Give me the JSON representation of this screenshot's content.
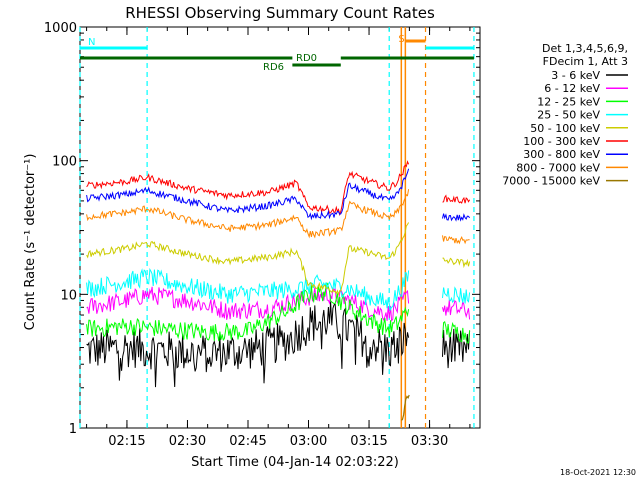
{
  "chart_data": {
    "type": "line",
    "title": "RHESSI Observing Summary Count Rates",
    "xlabel": "Start Time (04-Jan-14 02:03:22)",
    "ylabel": "Count Rate (s⁻¹ detector⁻¹)",
    "y_scale": "log",
    "ylim": [
      1,
      1000
    ],
    "xlim": [
      "02:03:22",
      "03:42:30"
    ],
    "x_ticks": [
      "02:15",
      "02:30",
      "02:45",
      "03:00",
      "03:15",
      "03:30"
    ],
    "y_ticks": [
      "1",
      "10",
      "100",
      "1000"
    ],
    "legend_position": "right",
    "legend_header": [
      "Det 1,3,4,5,6,9,",
      "FDecim 1, Att 3"
    ],
    "series": [
      {
        "name": "3 - 6 keV",
        "color": "#000000",
        "x": [
          "02:05",
          "02:15",
          "02:25",
          "02:35",
          "02:45",
          "02:55",
          "03:00",
          "03:05",
          "03:10",
          "03:15",
          "03:20",
          "03:22",
          "03:25",
          "03:33",
          "03:40"
        ],
        "values": [
          3.8,
          4.0,
          3.8,
          3.6,
          3.8,
          4.5,
          6.0,
          6.5,
          5.5,
          4.5,
          3.8,
          4.2,
          5.0,
          4.0,
          3.8
        ]
      },
      {
        "name": "6 - 12 keV",
        "color": "#ff00ff",
        "x": [
          "02:05",
          "02:15",
          "02:20",
          "02:30",
          "02:40",
          "02:50",
          "03:00",
          "03:05",
          "03:10",
          "03:15",
          "03:20",
          "03:22",
          "03:25",
          "03:33",
          "03:40"
        ],
        "values": [
          8.0,
          9.0,
          10.0,
          9.0,
          7.5,
          7.8,
          9.5,
          10.0,
          9.0,
          7.8,
          7.2,
          8.0,
          10.0,
          8.0,
          7.5
        ]
      },
      {
        "name": "12 - 25 keV",
        "color": "#00ff00",
        "x": [
          "02:05",
          "02:15",
          "02:25",
          "02:35",
          "02:45",
          "02:55",
          "03:00",
          "03:05",
          "03:10",
          "03:15",
          "03:20",
          "03:22",
          "03:25",
          "03:33",
          "03:40"
        ],
        "values": [
          5.5,
          5.8,
          5.5,
          5.2,
          5.3,
          7.5,
          10.0,
          10.5,
          8.0,
          6.5,
          5.5,
          6.0,
          8.0,
          5.5,
          5.0
        ]
      },
      {
        "name": "25 - 50 keV",
        "color": "#00ffff",
        "x": [
          "02:05",
          "02:15",
          "02:20",
          "02:30",
          "02:40",
          "02:50",
          "02:57",
          "03:03",
          "03:10",
          "03:15",
          "03:20",
          "03:22",
          "03:25",
          "03:33",
          "03:40"
        ],
        "values": [
          11.0,
          12.5,
          13.5,
          11.5,
          10.0,
          10.5,
          11.0,
          12.0,
          11.0,
          9.5,
          8.5,
          10.0,
          14.0,
          10.5,
          9.5
        ]
      },
      {
        "name": "50 - 100 keV",
        "color": "#cccc00",
        "x": [
          "02:05",
          "02:15",
          "02:20",
          "02:30",
          "02:40",
          "02:50",
          "02:57",
          "03:00",
          "03:08",
          "03:10",
          "03:15",
          "03:20",
          "03:22",
          "03:25",
          "03:33",
          "03:40"
        ],
        "values": [
          20.0,
          22.0,
          24.0,
          20.0,
          17.5,
          19.0,
          21.0,
          12.0,
          10.5,
          22.0,
          20.5,
          18.5,
          22.0,
          35.0,
          18.0,
          17.0
        ]
      },
      {
        "name": "100 - 300 keV",
        "color": "#ff0000",
        "x": [
          "02:05",
          "02:15",
          "02:20",
          "02:30",
          "02:40",
          "02:50",
          "02:57",
          "03:00",
          "03:08",
          "03:10",
          "03:15",
          "03:20",
          "03:22",
          "03:25",
          "03:33",
          "03:40"
        ],
        "values": [
          65.0,
          70.0,
          75.0,
          62.0,
          55.0,
          58.0,
          68.0,
          45.0,
          42.0,
          80.0,
          70.0,
          62.0,
          70.0,
          100.0,
          52.0,
          50.0
        ]
      },
      {
        "name": "300 - 800 keV",
        "color": "#0000ff",
        "x": [
          "02:05",
          "02:15",
          "02:20",
          "02:30",
          "02:40",
          "02:50",
          "02:57",
          "03:00",
          "03:08",
          "03:10",
          "03:15",
          "03:20",
          "03:22",
          "03:25",
          "03:33",
          "03:40"
        ],
        "values": [
          52.0,
          56.0,
          60.0,
          50.0,
          42.0,
          46.0,
          52.0,
          38.0,
          40.0,
          65.0,
          57.0,
          50.0,
          56.0,
          85.0,
          38.0,
          37.0
        ]
      },
      {
        "name": "800 - 7000 keV",
        "color": "#ff8800",
        "x": [
          "02:05",
          "02:15",
          "02:20",
          "02:30",
          "02:40",
          "02:50",
          "02:57",
          "03:00",
          "03:08",
          "03:10",
          "03:15",
          "03:20",
          "03:22",
          "03:25",
          "03:33",
          "03:40"
        ],
        "values": [
          38.0,
          41.0,
          44.0,
          36.0,
          31.0,
          33.0,
          38.0,
          28.0,
          30.0,
          47.0,
          42.0,
          37.0,
          41.0,
          60.0,
          26.0,
          25.0
        ]
      },
      {
        "name": "7000 - 15000 keV",
        "color": "#997700",
        "x": [
          "03:23",
          "03:24",
          "03:25"
        ],
        "values": [
          1.0,
          1.5,
          2.0
        ]
      }
    ],
    "markers": {
      "dashed_lines": [
        {
          "time": "02:03:22",
          "color": "#00ffff"
        },
        {
          "time": "02:20",
          "color": "#00ffff"
        },
        {
          "time": "03:20",
          "color": "#00ffff"
        },
        {
          "time": "03:29",
          "color": "#ff8800"
        },
        {
          "time": "03:41",
          "color": "#00ffff"
        }
      ],
      "solid_lines": [
        {
          "time": "03:23",
          "color": "#ff8800"
        },
        {
          "time": "03:24",
          "color": "#ff8800"
        }
      ]
    },
    "state_bars": [
      {
        "label": "N",
        "color": "#00ffff",
        "start": "02:03:22",
        "end": "02:20",
        "level": "upper"
      },
      {
        "label": "",
        "color": "#00ffff",
        "start": "03:29",
        "end": "03:41",
        "level": "upper"
      },
      {
        "label": "S",
        "color": "#ff8800",
        "start": "03:24",
        "end": "03:29",
        "level": "top"
      },
      {
        "label": "RD0",
        "color": "#006600",
        "start": "02:03:22",
        "end": "02:56",
        "level": "middle"
      },
      {
        "label": "",
        "color": "#006600",
        "start": "03:08",
        "end": "03:41",
        "level": "middle"
      },
      {
        "label": "RD6",
        "color": "#006600",
        "start": "02:56",
        "end": "03:08",
        "level": "lower"
      }
    ],
    "grid": false
  },
  "footer": {
    "timestamp": "18-Oct-2021 12:30"
  }
}
